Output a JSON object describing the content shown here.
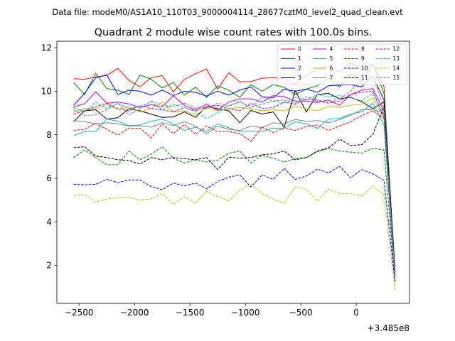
{
  "header": {
    "data_file": "Data file: modeM0/AS1A10_110T03_9000004114_28677cztM0_level2_quad_clean.evt"
  },
  "chart_data": {
    "type": "line",
    "title": "Quadrant 2 module wise count rates with 100.0s bins.",
    "xlabel": "",
    "ylabel": "",
    "x_offset_label": "+3.485e8",
    "xlim": [
      -2700,
      480
    ],
    "ylim": [
      0.25,
      12.3
    ],
    "x_ticks": [
      -2500,
      -2000,
      -1500,
      -1000,
      -500,
      0
    ],
    "x_tick_labels": [
      "−2500",
      "−2000",
      "−1500",
      "−1000",
      "−500",
      "0"
    ],
    "y_ticks": [
      2,
      4,
      6,
      8,
      10,
      12
    ],
    "y_tick_labels": [
      "2",
      "4",
      "6",
      "8",
      "10",
      "12"
    ],
    "x": [
      -2550,
      -2450,
      -2350,
      -2250,
      -2150,
      -2050,
      -1950,
      -1850,
      -1750,
      -1650,
      -1550,
      -1450,
      -1350,
      -1250,
      -1150,
      -1050,
      -950,
      -850,
      -750,
      -650,
      -550,
      -450,
      -350,
      -250,
      -150,
      -50,
      50,
      150,
      250,
      350
    ],
    "legend_location": "upper right",
    "series": [
      {
        "name": "0",
        "color": "#ff0000",
        "dash": "solid",
        "values": [
          10.58,
          10.55,
          10.66,
          10.73,
          11.05,
          10.5,
          10.2,
          10.62,
          10.72,
          9.97,
          10.55,
          10.8,
          11.02,
          10.1,
          10.85,
          10.43,
          10.45,
          10.6,
          10.62,
          10.58,
          10.35,
          10.75,
          11.0,
          11.15,
          10.9,
          11.3,
          11.02,
          11.25,
          10.2,
          1.5
        ]
      },
      {
        "name": "1",
        "color": "#008000",
        "dash": "solid",
        "values": [
          10.4,
          9.85,
          10.82,
          10.12,
          10.05,
          9.85,
          10.75,
          10.55,
          10.15,
          10.4,
          9.82,
          10.18,
          9.72,
          10.25,
          10.05,
          9.72,
          10.3,
          10.0,
          10.3,
          10.18,
          9.85,
          10.1,
          10.25,
          10.6,
          10.2,
          10.8,
          10.45,
          11.25,
          9.9,
          1.8
        ]
      },
      {
        "name": "2",
        "color": "#0000ff",
        "dash": "solid",
        "values": [
          9.35,
          9.9,
          10.62,
          10.75,
          9.85,
          10.05,
          10.0,
          9.82,
          10.05,
          9.8,
          10.0,
          9.95,
          9.78,
          10.0,
          9.82,
          10.05,
          10.2,
          9.75,
          9.7,
          10.1,
          10.0,
          10.1,
          9.95,
          10.25,
          10.28,
          10.3,
          10.2,
          10.7,
          9.6,
          1.7
        ]
      },
      {
        "name": "3",
        "color": "#000000",
        "dash": "solid",
        "values": [
          8.6,
          9.1,
          9.15,
          8.72,
          8.78,
          9.2,
          9.1,
          8.95,
          8.8,
          8.82,
          9.05,
          8.8,
          9.3,
          9.2,
          9.1,
          8.55,
          9.12,
          8.95,
          9.05,
          8.35,
          10.02,
          9.05,
          9.85,
          9.9,
          9.65,
          9.72,
          9.52,
          9.2,
          9.5,
          1.6
        ]
      },
      {
        "name": "4",
        "color": "#bf00bf",
        "dash": "solid",
        "values": [
          9.28,
          9.42,
          9.98,
          9.45,
          9.5,
          9.42,
          9.25,
          9.38,
          9.28,
          9.8,
          9.35,
          9.15,
          9.4,
          9.12,
          9.5,
          9.65,
          9.65,
          9.5,
          9.8,
          9.75,
          9.55,
          9.55,
          9.48,
          9.6,
          9.35,
          9.85,
          10.05,
          10.12,
          9.1,
          1.5
        ]
      },
      {
        "name": "5",
        "color": "#00bfbf",
        "dash": "solid",
        "values": [
          7.95,
          8.15,
          8.15,
          8.72,
          8.62,
          8.42,
          8.45,
          8.62,
          8.72,
          8.5,
          8.2,
          8.35,
          8.15,
          8.5,
          8.32,
          8.15,
          8.18,
          8.15,
          8.3,
          8.3,
          8.6,
          8.5,
          8.3,
          8.72,
          8.75,
          8.95,
          9.05,
          9.45,
          8.45,
          1.3
        ]
      },
      {
        "name": "6",
        "color": "#bfbf00",
        "dash": "solid",
        "values": [
          9.05,
          9.2,
          9.2,
          9.4,
          9.15,
          9.3,
          9.05,
          9.2,
          9.5,
          9.05,
          9.1,
          8.9,
          9.25,
          9.1,
          9.2,
          9.25,
          9.2,
          9.1,
          9.15,
          9.1,
          9.3,
          9.2,
          9.1,
          9.3,
          9.25,
          9.35,
          9.4,
          9.7,
          8.8,
          1.4
        ]
      },
      {
        "name": "7",
        "color": "#808080",
        "dash": "solid",
        "values": [
          8.65,
          8.6,
          8.5,
          8.55,
          8.5,
          8.4,
          8.42,
          8.35,
          8.55,
          8.42,
          8.6,
          8.4,
          8.05,
          8.4,
          8.25,
          8.2,
          8.4,
          8.32,
          8.55,
          8.5,
          8.7,
          8.62,
          8.65,
          8.55,
          8.7,
          8.9,
          9.15,
          9.15,
          9.0,
          1.4
        ]
      },
      {
        "name": "8",
        "color": "#ff0000",
        "dash": "dashed",
        "values": [
          8.2,
          8.25,
          8.52,
          8.25,
          7.98,
          8.3,
          8.3,
          7.85,
          8.5,
          8.05,
          8.48,
          8.02,
          8.4,
          8.15,
          8.15,
          8.05,
          7.7,
          8.35,
          8.1,
          8.32,
          8.2,
          8.38,
          8.45,
          8.2,
          8.4,
          8.6,
          8.88,
          9.1,
          8.75,
          1.3
        ]
      },
      {
        "name": "9",
        "color": "#008000",
        "dash": "dashed",
        "values": [
          6.95,
          7.3,
          6.95,
          6.62,
          6.62,
          7.25,
          6.85,
          7.1,
          7.45,
          6.92,
          6.7,
          6.85,
          6.75,
          6.82,
          7.15,
          7.25,
          6.7,
          7.05,
          6.92,
          6.75,
          6.9,
          6.95,
          7.22,
          7.38,
          7.25,
          7.2,
          7.15,
          7.38,
          7.3,
          1.3
        ]
      },
      {
        "name": "10",
        "color": "#0000ff",
        "dash": "dashed",
        "values": [
          5.72,
          5.7,
          5.72,
          5.95,
          5.8,
          5.92,
          5.92,
          5.62,
          5.48,
          5.78,
          5.65,
          5.78,
          5.52,
          5.85,
          6.05,
          6.15,
          5.6,
          6.15,
          5.95,
          6.45,
          5.95,
          6.1,
          6.42,
          6.25,
          6.55,
          6.02,
          6.4,
          6.2,
          5.9,
          1.2
        ]
      },
      {
        "name": "11",
        "color": "#000000",
        "dash": "dashed",
        "values": [
          7.4,
          7.45,
          7.02,
          6.95,
          6.85,
          6.82,
          6.65,
          6.95,
          6.85,
          6.95,
          6.9,
          6.85,
          6.95,
          6.4,
          6.97,
          6.92,
          6.95,
          7.08,
          7.12,
          7.25,
          6.85,
          6.95,
          7.25,
          7.4,
          7.8,
          7.5,
          7.55,
          8.02,
          9.3,
          1.2
        ]
      },
      {
        "name": "12",
        "color": "#bf00bf",
        "dash": "dashed",
        "values": [
          8.95,
          9.1,
          9.3,
          9.45,
          9.2,
          9.1,
          9.35,
          9.2,
          9.15,
          9.05,
          9.25,
          9.1,
          9.3,
          9.35,
          9.2,
          9.1,
          9.45,
          9.2,
          9.25,
          9.5,
          9.4,
          9.65,
          9.55,
          9.45,
          9.55,
          9.85,
          9.95,
          10.0,
          8.8,
          1.3
        ]
      },
      {
        "name": "13",
        "color": "#00bfbf",
        "dash": "dashed",
        "values": [
          9.25,
          9.05,
          9.5,
          9.2,
          9.45,
          9.2,
          9.3,
          9.5,
          9.15,
          9.4,
          9.25,
          9.05,
          8.75,
          9.0,
          9.35,
          9.5,
          9.3,
          9.4,
          9.55,
          9.45,
          9.7,
          9.6,
          9.85,
          9.75,
          9.8,
          9.7,
          9.55,
          9.9,
          8.9,
          1.4
        ]
      },
      {
        "name": "14",
        "color": "#bfbf00",
        "dash": "dashed",
        "values": [
          5.2,
          5.25,
          4.9,
          5.05,
          5.1,
          5.12,
          5.0,
          5.05,
          5.3,
          4.8,
          5.15,
          4.85,
          5.4,
          5.15,
          4.97,
          5.45,
          5.75,
          5.3,
          5.05,
          4.85,
          5.6,
          5.5,
          4.95,
          5.5,
          5.3,
          5.3,
          5.18,
          5.65,
          5.25,
          0.8
        ]
      },
      {
        "name": "15",
        "color": "#808080",
        "dash": "dashed",
        "values": [
          9.15,
          8.88,
          8.92,
          9.15,
          9.45,
          8.92,
          9.2,
          9.55,
          9.35,
          9.3,
          9.45,
          9.25,
          9.2,
          9.45,
          9.3,
          9.55,
          9.2,
          9.75,
          9.55,
          9.6,
          9.45,
          9.75,
          9.6,
          9.5,
          9.65,
          10.0,
          10.65,
          10.7,
          9.2,
          1.3
        ]
      }
    ]
  }
}
